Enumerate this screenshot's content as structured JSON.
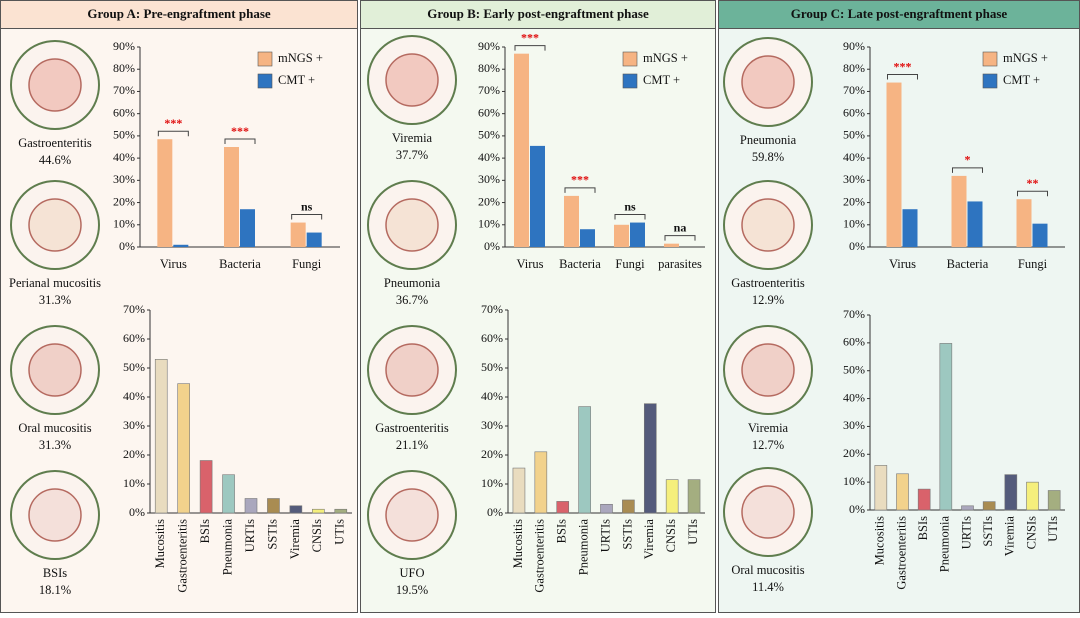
{
  "panels": [
    {
      "title": "Group A: Pre-engraftment phase",
      "icons": [
        {
          "label": "Gastroenteritis",
          "value": "44.6%"
        },
        {
          "label": "Perianal mucositis",
          "value": "31.3%"
        },
        {
          "label": "Oral mucositis",
          "value": "31.3%"
        },
        {
          "label": "BSIs",
          "value": "18.1%"
        }
      ]
    },
    {
      "title": "Group B: Early post-engraftment phase",
      "icons": [
        {
          "label": "Viremia",
          "value": "37.7%"
        },
        {
          "label": "Pneumonia",
          "value": "36.7%"
        },
        {
          "label": "Gastroenteritis",
          "value": "21.1%"
        },
        {
          "label": "UFO",
          "value": "19.5%"
        }
      ]
    },
    {
      "title": "Group C: Late post-engraftment phase",
      "icons": [
        {
          "label": "Pneumonia",
          "value": "59.8%"
        },
        {
          "label": "Gastroenteritis",
          "value": "12.9%"
        },
        {
          "label": "Viremia",
          "value": "12.7%"
        },
        {
          "label": "Oral mucositis",
          "value": "11.4%"
        }
      ]
    }
  ],
  "chart_data": [
    {
      "type": "bar",
      "categories": [
        "Virus",
        "Bacteria",
        "Fungi"
      ],
      "series": [
        {
          "name": "mNGS +",
          "color": "#f6b483",
          "values": [
            48.5,
            45,
            11
          ]
        },
        {
          "name": "CMT +",
          "color": "#2e74c0",
          "values": [
            1,
            17,
            6.5
          ]
        }
      ],
      "annotations": [
        "***",
        "***",
        "ns"
      ],
      "ylim": [
        0,
        90
      ],
      "yticks": [
        {
          "value": 0,
          "label": "0%"
        },
        {
          "value": 10,
          "label": "10%"
        },
        {
          "value": 20,
          "label": "20%"
        },
        {
          "value": 30,
          "label": "30%"
        },
        {
          "value": 40,
          "label": "40%"
        },
        {
          "value": 50,
          "label": "50%"
        },
        {
          "value": 60,
          "label": "60%"
        },
        {
          "value": 70,
          "label": "70%"
        },
        {
          "value": 80,
          "label": "80%"
        },
        {
          "value": 90,
          "label": "90%"
        }
      ]
    },
    {
      "type": "bar",
      "categories": [
        "Mucositis",
        "Gastroenteritis",
        "BSIs",
        "Pneumonia",
        "URTIs",
        "SSTIs",
        "Viremia",
        "CNSIs",
        "UTIs"
      ],
      "values": [
        53,
        44.6,
        18.1,
        13.2,
        5,
        5,
        2.5,
        1.3,
        1.3
      ],
      "colors": [
        "#e9dcbf",
        "#f2d28c",
        "#d9626b",
        "#9dc8c0",
        "#aaa7bd",
        "#a98c52",
        "#545b7b",
        "#f5ef7c",
        "#a4ae80"
      ],
      "ylim": [
        0,
        70
      ],
      "yticks": [
        {
          "value": 0,
          "label": "0%"
        },
        {
          "value": 10,
          "label": "10%"
        },
        {
          "value": 20,
          "label": "20%"
        },
        {
          "value": 30,
          "label": "30%"
        },
        {
          "value": 40,
          "label": "40%"
        },
        {
          "value": 50,
          "label": "50%"
        },
        {
          "value": 60,
          "label": "60%"
        },
        {
          "value": 70,
          "label": "70%"
        }
      ]
    },
    {
      "type": "bar",
      "categories": [
        "Virus",
        "Bacteria",
        "Fungi",
        "parasites"
      ],
      "series": [
        {
          "name": "mNGS +",
          "color": "#f6b483",
          "values": [
            87,
            23,
            10,
            1.5
          ]
        },
        {
          "name": "CMT +",
          "color": "#2e74c0",
          "values": [
            45.5,
            8,
            11,
            null
          ]
        }
      ],
      "annotations": [
        "***",
        "***",
        "ns",
        "na"
      ],
      "ylim": [
        0,
        90
      ],
      "yticks": [
        {
          "value": 0,
          "label": "0%"
        },
        {
          "value": 10,
          "label": "10%"
        },
        {
          "value": 20,
          "label": "20%"
        },
        {
          "value": 30,
          "label": "30%"
        },
        {
          "value": 40,
          "label": "40%"
        },
        {
          "value": 50,
          "label": "50%"
        },
        {
          "value": 60,
          "label": "60%"
        },
        {
          "value": 70,
          "label": "70%"
        },
        {
          "value": 80,
          "label": "80%"
        },
        {
          "value": 90,
          "label": "90%"
        }
      ]
    },
    {
      "type": "bar",
      "categories": [
        "Mucositis",
        "Gastroenteritis",
        "BSIs",
        "Pneumonia",
        "URTIs",
        "SSTIs",
        "Viremia",
        "CNSIs",
        "UTIs"
      ],
      "values": [
        15.5,
        21.1,
        4,
        36.7,
        3,
        4.5,
        37.7,
        11.5,
        11.5
      ],
      "colors": [
        "#e9dcbf",
        "#f2d28c",
        "#d9626b",
        "#9dc8c0",
        "#aaa7bd",
        "#a98c52",
        "#545b7b",
        "#f5ef7c",
        "#a4ae80"
      ],
      "ylim": [
        0,
        70
      ],
      "yticks": [
        {
          "value": 0,
          "label": "0%"
        },
        {
          "value": 10,
          "label": "10%"
        },
        {
          "value": 20,
          "label": "20%"
        },
        {
          "value": 30,
          "label": "30%"
        },
        {
          "value": 40,
          "label": "40%"
        },
        {
          "value": 50,
          "label": "50%"
        },
        {
          "value": 60,
          "label": "60%"
        },
        {
          "value": 70,
          "label": "70%"
        }
      ]
    },
    {
      "type": "bar",
      "categories": [
        "Virus",
        "Bacteria",
        "Fungi"
      ],
      "series": [
        {
          "name": "mNGS +",
          "color": "#f6b483",
          "values": [
            74,
            32,
            21.5
          ]
        },
        {
          "name": "CMT +",
          "color": "#2e74c0",
          "values": [
            17,
            20.5,
            10.5
          ]
        }
      ],
      "annotations": [
        "***",
        "*",
        "**"
      ],
      "ylim": [
        0,
        90
      ],
      "yticks": [
        {
          "value": 0,
          "label": "0%"
        },
        {
          "value": 10,
          "label": "10%"
        },
        {
          "value": 20,
          "label": "20%"
        },
        {
          "value": 30,
          "label": "30%"
        },
        {
          "value": 40,
          "label": "40%"
        },
        {
          "value": 50,
          "label": "50%"
        },
        {
          "value": 60,
          "label": "60%"
        },
        {
          "value": 70,
          "label": "70%"
        },
        {
          "value": 80,
          "label": "80%"
        },
        {
          "value": 90,
          "label": "90%"
        }
      ]
    },
    {
      "type": "bar",
      "categories": [
        "Mucositis",
        "Gastroenteritis",
        "BSIs",
        "Pneumonia",
        "URTIs",
        "SSTIs",
        "Viremia",
        "CNSIs",
        "UTIs"
      ],
      "values": [
        16,
        13,
        7.5,
        59.8,
        1.5,
        3,
        12.7,
        10,
        7
      ],
      "colors": [
        "#e9dcbf",
        "#f2d28c",
        "#d9626b",
        "#9dc8c0",
        "#aaa7bd",
        "#a98c52",
        "#545b7b",
        "#f5ef7c",
        "#a4ae80"
      ],
      "ylim": [
        0,
        70
      ],
      "yticks": [
        {
          "value": 0,
          "label": "0%"
        },
        {
          "value": 10,
          "label": "10%"
        },
        {
          "value": 20,
          "label": "20%"
        },
        {
          "value": 30,
          "label": "30%"
        },
        {
          "value": 40,
          "label": "40%"
        },
        {
          "value": 50,
          "label": "50%"
        },
        {
          "value": 60,
          "label": "60%"
        },
        {
          "value": 70,
          "label": "70%"
        }
      ]
    }
  ]
}
